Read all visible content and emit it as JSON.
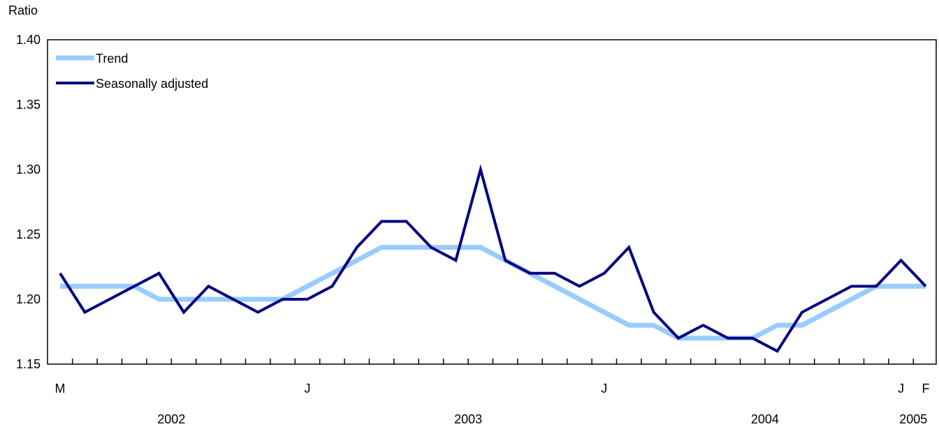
{
  "chart_data": {
    "type": "line",
    "ylabel": "Ratio",
    "ylim": [
      1.15,
      1.4
    ],
    "yticks": [
      "1.40",
      "1.35",
      "1.30",
      "1.25",
      "1.20",
      "1.15"
    ],
    "x": [
      "2002-03",
      "2002-04",
      "2002-05",
      "2002-06",
      "2002-07",
      "2002-08",
      "2002-09",
      "2002-10",
      "2002-11",
      "2002-12",
      "2003-01",
      "2003-02",
      "2003-03",
      "2003-04",
      "2003-05",
      "2003-06",
      "2003-07",
      "2003-08",
      "2003-09",
      "2003-10",
      "2003-11",
      "2003-12",
      "2004-01",
      "2004-02",
      "2004-03",
      "2004-04",
      "2004-05",
      "2004-06",
      "2004-07",
      "2004-08",
      "2004-09",
      "2004-10",
      "2004-11",
      "2004-12",
      "2005-01",
      "2005-02"
    ],
    "month_labels": [
      {
        "label": "M",
        "index": 0
      },
      {
        "label": "J",
        "index": 10
      },
      {
        "label": "J",
        "index": 22
      },
      {
        "label": "J",
        "index": 34
      },
      {
        "label": "F",
        "index": 35
      }
    ],
    "year_labels": [
      {
        "label": "2002",
        "index": 4.5
      },
      {
        "label": "2003",
        "index": 16.5
      },
      {
        "label": "2004",
        "index": 28.5
      },
      {
        "label": "2005",
        "index": 34.5
      }
    ],
    "legend_position": "top-left",
    "grid": false,
    "series": [
      {
        "name": "Trend",
        "color": "#99ccff",
        "values": [
          1.21,
          1.21,
          1.21,
          1.21,
          1.2,
          1.2,
          1.2,
          1.2,
          1.2,
          1.2,
          1.21,
          1.22,
          1.23,
          1.24,
          1.24,
          1.24,
          1.24,
          1.24,
          1.23,
          1.22,
          1.21,
          1.2,
          1.19,
          1.18,
          1.18,
          1.17,
          1.17,
          1.17,
          1.17,
          1.18,
          1.18,
          1.19,
          1.2,
          1.21,
          1.21,
          1.21
        ]
      },
      {
        "name": "Seasonally adjusted",
        "color": "#000080",
        "values": [
          1.22,
          1.19,
          1.2,
          1.21,
          1.22,
          1.19,
          1.21,
          1.2,
          1.19,
          1.2,
          1.2,
          1.21,
          1.24,
          1.26,
          1.26,
          1.24,
          1.23,
          1.3,
          1.23,
          1.22,
          1.22,
          1.21,
          1.22,
          1.24,
          1.19,
          1.17,
          1.18,
          1.17,
          1.17,
          1.16,
          1.19,
          1.2,
          1.21,
          1.21,
          1.23,
          1.21
        ]
      }
    ]
  }
}
